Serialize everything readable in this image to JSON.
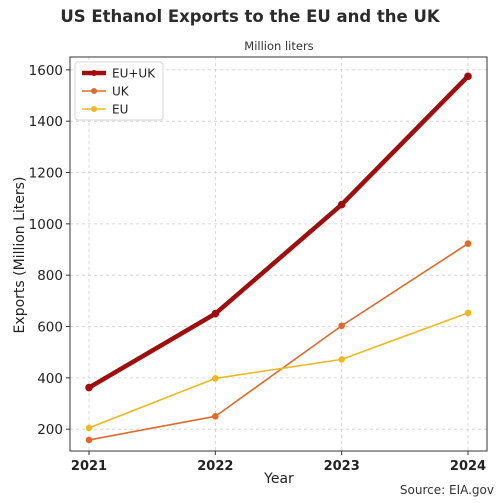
{
  "chart_data": {
    "type": "line",
    "title": "US Ethanol Exports to the EU and the UK",
    "subtitle": "Million liters",
    "xlabel": "Year",
    "ylabel": "Exports (Million Liters)",
    "source": "Source: EIA.gov",
    "x": [
      "2021",
      "2022",
      "2023",
      "2024"
    ],
    "ylim": [
      115,
      1650
    ],
    "yticks": [
      200,
      400,
      600,
      800,
      1000,
      1200,
      1400,
      1600
    ],
    "grid": true,
    "legend_position": "top-left",
    "series": [
      {
        "name": "EU+UK",
        "values": [
          362,
          650,
          1075,
          1575
        ],
        "color": "#a00d0d"
      },
      {
        "name": "UK",
        "values": [
          158,
          250,
          603,
          923
        ],
        "color": "#e0692a"
      },
      {
        "name": "EU",
        "values": [
          205,
          398,
          472,
          653
        ],
        "color": "#f0b820"
      }
    ]
  }
}
